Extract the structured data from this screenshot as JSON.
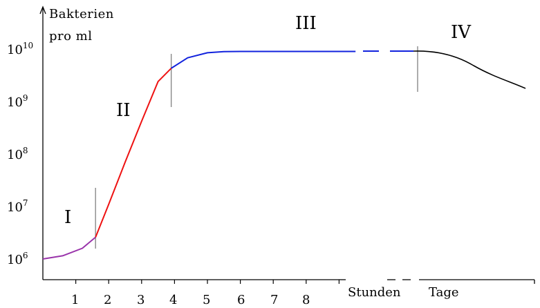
{
  "chart_data": {
    "type": "line",
    "y_label_lines": [
      "Bakterien",
      "pro ml"
    ],
    "y_scale": "log",
    "y_ticks": [
      {
        "base": "10",
        "exp": "6"
      },
      {
        "base": "10",
        "exp": "7"
      },
      {
        "base": "10",
        "exp": "8"
      },
      {
        "base": "10",
        "exp": "9"
      },
      {
        "base": "10",
        "exp": "10"
      }
    ],
    "x_ticks": [
      "1",
      "2",
      "3",
      "4",
      "5",
      "6",
      "7",
      "8"
    ],
    "x_label_hours": "Stunden",
    "x_label_days": "Tage",
    "phases": [
      "I",
      "II",
      "III",
      "IV"
    ],
    "colors": {
      "phase_I": "#9933aa",
      "phase_II": "#ee1111",
      "phase_III": "#1122dd",
      "phase_IV": "#000000",
      "boundary": "#888888",
      "axis": "#000000"
    },
    "series": [
      {
        "phase": "I",
        "points": [
          [
            0,
            1000000.0
          ],
          [
            0.6,
            1150000.0
          ],
          [
            1.2,
            1600000.0
          ],
          [
            1.6,
            2600000.0
          ]
        ]
      },
      {
        "phase": "II",
        "points": [
          [
            1.6,
            2600000.0
          ],
          [
            2.0,
            11000000.0
          ],
          [
            2.5,
            70000000.0
          ],
          [
            3.0,
            420000000.0
          ],
          [
            3.5,
            2400000000.0
          ],
          [
            3.9,
            4300000000.0
          ]
        ]
      },
      {
        "phase": "III",
        "points": [
          [
            3.9,
            4300000000.0
          ],
          [
            4.4,
            6800000000.0
          ],
          [
            5.0,
            8500000000.0
          ],
          [
            5.5,
            8900000000.0
          ],
          [
            6.0,
            9000000000.0
          ],
          [
            9.5,
            9000000000.0
          ]
        ]
      }
    ],
    "phase_boundaries_hours": [
      1.6,
      3.9
    ]
  }
}
